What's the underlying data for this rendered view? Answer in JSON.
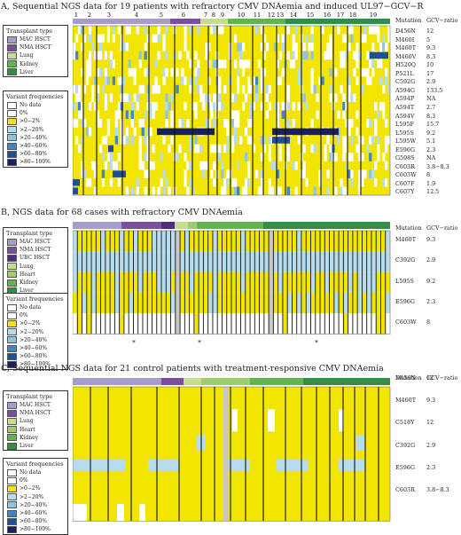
{
  "colors": {
    "no_data": "#ffffff",
    "p0": "#ffffff",
    "ge2": "#f2e600",
    "p2_20": "#b7dcee",
    "p20_40": "#8fc3e2",
    "p40_60": "#3f86c3",
    "p60_80": "#1f4f94",
    "p80_100": "#1a1f5e",
    "mac": "#a79ccc",
    "nma": "#7a4f9e",
    "ucb": "#4b2f7a",
    "lung": "#c8dc8e",
    "heart": "#9ccd6a",
    "kidney": "#63b44f",
    "liver": "#2f8f46",
    "grey": "#c7c7c7"
  },
  "panelA": {
    "title": "A, Sequential NGS data for 19 patients with refractory CMV DNAemia and induced UL97−GCV−R",
    "patients": [
      "1",
      "2",
      "3",
      "4",
      "5",
      "6",
      "7",
      "8",
      "9",
      "10",
      "11",
      "12",
      "13",
      "14",
      "15",
      "16",
      "17",
      "18",
      "19"
    ],
    "header": {
      "mutation": "Mutation",
      "ratio": "GCV−ratio"
    },
    "mutations": [
      [
        "D456N",
        "12"
      ],
      [
        "M460I",
        "5"
      ],
      [
        "M460T",
        "9.3"
      ],
      [
        "M460V",
        "8.3"
      ],
      [
        "H520Q",
        "10"
      ],
      [
        "P521L",
        "17"
      ],
      [
        "C592G",
        "2.9"
      ],
      [
        "A594G",
        "133.5"
      ],
      [
        "A594P",
        "NA"
      ],
      [
        "A594T",
        "2.7"
      ],
      [
        "A594V",
        "8.3"
      ],
      [
        "L595F",
        "15.7"
      ],
      [
        "L595S",
        "9.2"
      ],
      [
        "L595W",
        "5.1"
      ],
      [
        "E596G",
        "2.3"
      ],
      [
        "G598S",
        "NA"
      ],
      [
        "C603R",
        "3.8−8.3"
      ],
      [
        "C603W",
        "8"
      ],
      [
        "C607F",
        "1.9"
      ],
      [
        "C607Y",
        "12.5"
      ]
    ],
    "legend1": {
      "title": "Transplant type",
      "items": [
        "MAC HSCT",
        "NMA HSCT",
        "Lung",
        "Kidney",
        "Liver"
      ]
    },
    "legend2": {
      "title": "Variant frequencies",
      "items": [
        "No data",
        "0%",
        ">0−2%",
        ">2−20%",
        ">20−40%",
        ">40−60%",
        ">60−80%",
        ">80−100%"
      ]
    }
  },
  "panelB": {
    "title": "B, NGS data for 68 cases with refractory CMV DNAemia",
    "header": {
      "mutation": "Mutation",
      "ratio": "GCV−ratio"
    },
    "mutations": [
      [
        "M460T",
        "9.3"
      ],
      [
        "C392G",
        "2.9"
      ],
      [
        "L595S",
        "9.2"
      ],
      [
        "E596G",
        "2.3"
      ],
      [
        "C603W",
        "8"
      ]
    ],
    "legend1": {
      "title": "Transplant type",
      "items": [
        "MAC HSCT",
        "NMA HSCT",
        "UBC HSCT",
        "Lung",
        "Heart",
        "Kidney",
        "Liver"
      ]
    },
    "legend2": {
      "title": "Variant frequencies",
      "items": [
        "No data",
        "0%",
        ">0−2%",
        ">2−20%",
        ">20−40%",
        ">40−60%",
        ">60−80%",
        ">80−100%"
      ]
    },
    "stars": [
      "*",
      "*",
      "*"
    ]
  },
  "panelC": {
    "title": "C, Sequential NGS data for 21 control patients with treatment-responsive CMV DNAemia",
    "header": {
      "mutation": "Mutation",
      "ratio": "GCV−ratio"
    },
    "mutations": [
      [
        "D456N",
        "12"
      ],
      [
        "M460T",
        "9.3"
      ],
      [
        "C518Y",
        "12"
      ],
      [
        "C392G",
        "2.9"
      ],
      [
        "E596G",
        "2.3"
      ],
      [
        "C603R",
        "3.8−8.3"
      ]
    ],
    "legend1": {
      "title": "Transplant type",
      "items": [
        "MAC HSCT",
        "NMA HSCT",
        "Lung",
        "Heart",
        "Kidney",
        "Liver"
      ]
    },
    "legend2": {
      "title": "Variant frequencies",
      "items": [
        "No data",
        "0%",
        ">0−2%",
        ">2−20%",
        ">20−40%",
        ">40−60%",
        ">60−80%",
        ">80−100%"
      ]
    }
  },
  "chart_data": [
    {
      "type": "heatmap",
      "title": "A, Sequential NGS data for 19 patients with refractory CMV DNAemia and induced UL97−GCV−R",
      "columns": [
        "1",
        "2",
        "3",
        "4",
        "5",
        "6",
        "7",
        "8",
        "9",
        "10",
        "11",
        "12",
        "13",
        "14",
        "15",
        "16",
        "17",
        "18",
        "19"
      ],
      "rows": [
        "D456N",
        "M460I",
        "M460T",
        "M460V",
        "H520Q",
        "P521L",
        "C592G",
        "A594G",
        "A594P",
        "A594T",
        "A594V",
        "L595F",
        "L595S",
        "L595W",
        "E596G",
        "G598S",
        "C603R",
        "C603W",
        "C607F",
        "C607Y"
      ]
    },
    {
      "type": "heatmap",
      "title": "B, NGS data for 68 cases with refractory CMV DNAemia",
      "rows": [
        "M460T",
        "C392G",
        "L595S",
        "E596G",
        "C603W"
      ]
    },
    {
      "type": "heatmap",
      "title": "C, Sequential NGS data for 21 control patients with treatment-responsive CMV DNAemia",
      "rows": [
        "D456N",
        "M460T",
        "C518Y",
        "C392G",
        "E596G",
        "C603R"
      ]
    }
  ]
}
